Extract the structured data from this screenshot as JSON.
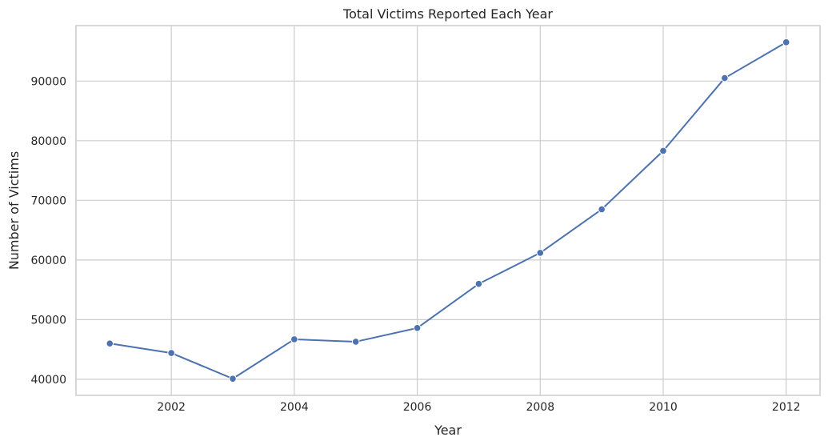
{
  "chart_data": {
    "type": "line",
    "title": "Total Victims Reported Each Year",
    "xlabel": "Year",
    "ylabel": "Number of Victims",
    "x": [
      2001,
      2002,
      2003,
      2004,
      2005,
      2006,
      2007,
      2008,
      2009,
      2010,
      2011,
      2012
    ],
    "series": [
      {
        "values": [
          46000,
          44400,
          40100,
          46700,
          46300,
          48600,
          56000,
          61200,
          68500,
          78300,
          90500,
          96500
        ]
      }
    ],
    "xlim": [
      2000.45,
      2012.55
    ],
    "ylim": [
      37300,
      99300
    ],
    "x_ticks": [
      "2002",
      "2004",
      "2006",
      "2008",
      "2010",
      "2012"
    ],
    "y_ticks": [
      "40000",
      "50000",
      "60000",
      "70000",
      "80000",
      "90000"
    ],
    "grid": true,
    "legend": "none",
    "colors": {
      "line": "#4c72b0",
      "grid": "#cccccc",
      "text": "#262626"
    }
  }
}
